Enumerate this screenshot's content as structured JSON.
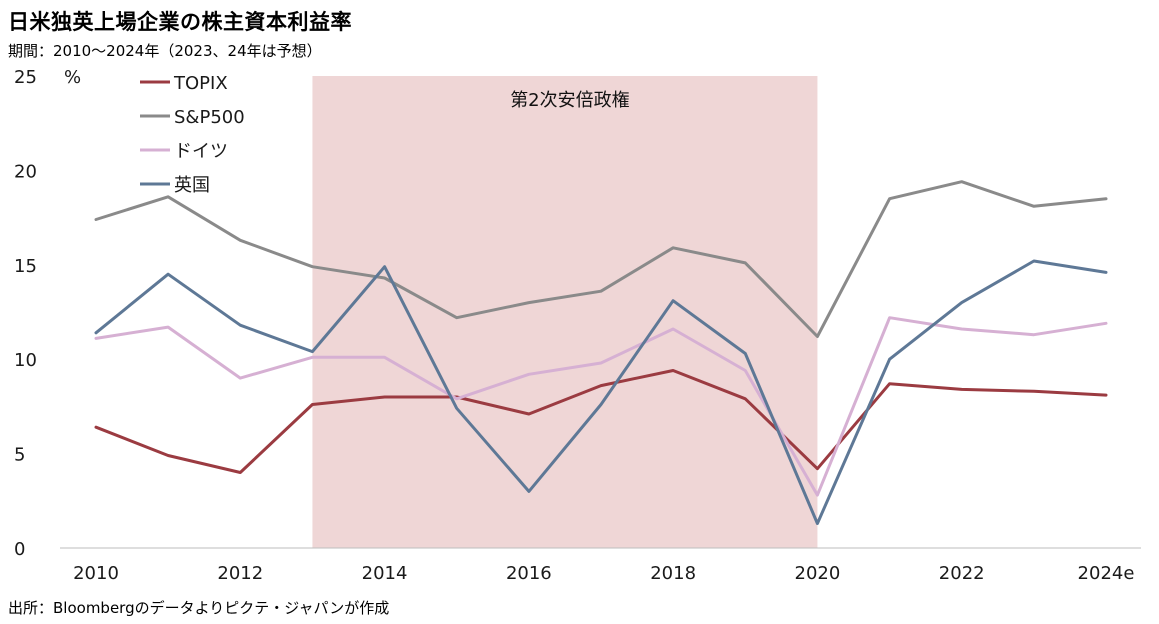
{
  "header": {
    "title": "日米独英上場企業の株主資本利益率",
    "subtitle": "期間：2010～2024年（2023、24年は予想）"
  },
  "footer": {
    "source": "出所：Bloombergのデータよりピクテ・ジャパンが作成"
  },
  "chart_data": {
    "type": "line",
    "title": "日米独英上場企業の株主資本利益率",
    "subtitle": "期間：2010～2024年（2023、24年は予想）",
    "xlabel": "",
    "ylabel": "",
    "y_unit": "%",
    "ylim": [
      0,
      25
    ],
    "y_ticks": [
      0,
      5,
      10,
      15,
      20,
      25
    ],
    "x": [
      2010,
      2011,
      2012,
      2013,
      2014,
      2015,
      2016,
      2017,
      2018,
      2019,
      2020,
      2021,
      2022,
      2023,
      2024
    ],
    "x_tick_labels": [
      "2010",
      "",
      "2012",
      "",
      "2014",
      "",
      "2016",
      "",
      "2018",
      "",
      "2020",
      "",
      "2022",
      "",
      "2024e"
    ],
    "grid": false,
    "legend_position": "top-left",
    "band": {
      "label": "第2次安倍政権",
      "from": 2013,
      "to": 2020,
      "color": "#efd6d6"
    },
    "series": [
      {
        "name": "TOPIX",
        "color": "#9b3b41",
        "values": [
          6.4,
          4.9,
          4.0,
          7.6,
          8.0,
          8.0,
          7.1,
          8.6,
          9.4,
          7.9,
          4.2,
          8.7,
          8.4,
          8.3,
          8.1
        ]
      },
      {
        "name": "S&P500",
        "color": "#8a8a8a",
        "values": [
          17.4,
          18.6,
          16.3,
          14.9,
          14.3,
          12.2,
          13.0,
          13.6,
          15.9,
          15.1,
          11.2,
          18.5,
          19.4,
          18.1,
          18.5
        ]
      },
      {
        "name": "ドイツ",
        "color": "#d6b0d3",
        "values": [
          11.1,
          11.7,
          9.0,
          10.1,
          10.1,
          7.9,
          9.2,
          9.8,
          11.6,
          9.4,
          2.8,
          12.2,
          11.6,
          11.3,
          11.9
        ]
      },
      {
        "name": "英国",
        "color": "#5e7896",
        "values": [
          11.4,
          14.5,
          11.8,
          10.4,
          14.9,
          7.4,
          3.0,
          7.6,
          13.1,
          10.3,
          1.3,
          10.0,
          13.0,
          15.2,
          14.6
        ]
      }
    ]
  }
}
